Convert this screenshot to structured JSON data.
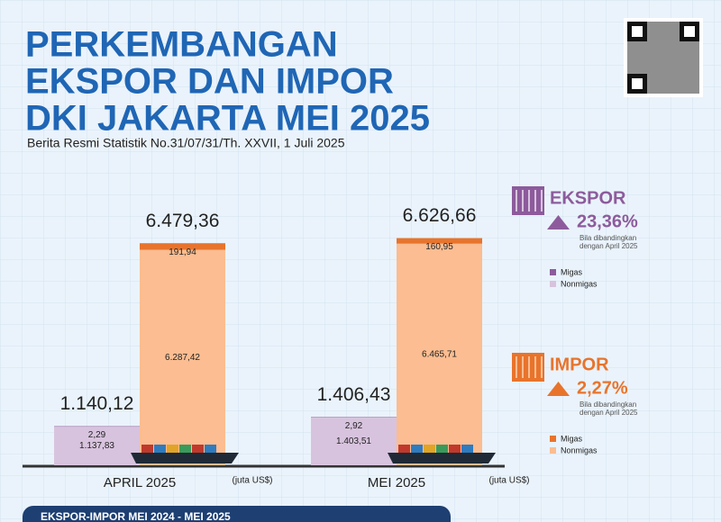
{
  "chart_data": {
    "type": "bar",
    "stacked": true,
    "title": [
      "PERKEMBANGAN",
      "EKSPOR DAN IMPOR",
      "DKI JAKARTA MEI 2025"
    ],
    "subtitle": "Berita Resmi Statistik No.31/07/31/Th. XXVII, 1 Juli 2025",
    "categories": [
      "APRIL 2025",
      "MEI 2025"
    ],
    "unit": "(juta US$)",
    "ylim": [
      0,
      6800
    ],
    "groups": [
      {
        "name": "EKSPOR",
        "change_label": "23,36%",
        "note": "Bila dibandingkan dengan April 2025",
        "totals": [
          1140.12,
          1406.43
        ],
        "total_labels": [
          "1.140,12",
          "1.406,43"
        ],
        "series": [
          {
            "name": "Migas",
            "color": "#8d5b9c",
            "values": [
              2.29,
              2.92
            ],
            "value_labels": [
              "2,29",
              "2,92"
            ]
          },
          {
            "name": "Nonmigas",
            "color": "#d8c3de",
            "values": [
              1137.83,
              1403.51
            ],
            "value_labels": [
              "1.137,83",
              "1.403,51"
            ]
          }
        ]
      },
      {
        "name": "IMPOR",
        "change_label": "2,27%",
        "note": "Bila dibandingkan dengan April 2025",
        "totals": [
          6479.36,
          6626.66
        ],
        "total_labels": [
          "6.479,36",
          "6.626,66"
        ],
        "series": [
          {
            "name": "Migas",
            "color": "#e8742c",
            "values": [
              191.94,
              160.95
            ],
            "value_labels": [
              "191,94",
              "160,95"
            ]
          },
          {
            "name": "Nonmigas",
            "color": "#fbbd91",
            "values": [
              6287.42,
              6465.71
            ],
            "value_labels": [
              "6.287,42",
              "6.465,71"
            ]
          }
        ]
      }
    ],
    "footer": "EKSPOR-IMPOR MEI 2024 - MEI 2025"
  }
}
